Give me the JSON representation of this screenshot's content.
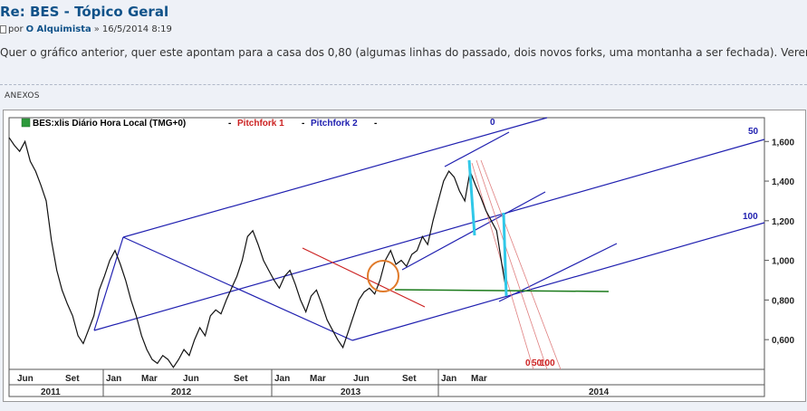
{
  "post": {
    "title": "Re: BES - Tópico Geral",
    "by_label": "por",
    "author": "O Alquimista",
    "separator": "»",
    "date": "16/5/2014 8:19",
    "body": "Quer o gráfico anterior, quer este apontam para a casa dos 0,80 (algumas linhas do passado, dois novos forks, uma montanha a ser fechada). Veremos."
  },
  "attachments": {
    "label": "ANEXOS"
  },
  "chart_data": {
    "type": "line",
    "title": "BES:xlis Diário Hora Local (TMG+0)",
    "legend": [
      {
        "name": "Pitchfork 1",
        "color": "#cc2222"
      },
      {
        "name": "Pitchfork 2",
        "color": "#2020b0"
      }
    ],
    "y_ticks": [
      "1,600",
      "1,400",
      "1,200",
      "1,000",
      "0,800",
      "0,600"
    ],
    "ylim": [
      0.45,
      1.72
    ],
    "x_month_labels": [
      "Jun",
      "Set",
      "Jan",
      "Mar",
      "Jun",
      "Set",
      "Jan",
      "Mar",
      "Jun",
      "Set",
      "Jan",
      "Mar"
    ],
    "x_year_labels": [
      "2011",
      "2012",
      "2013",
      "2014"
    ],
    "fork_level_labels": [
      "0",
      "50",
      "100",
      "0",
      "50",
      "100"
    ],
    "series": [
      {
        "values": [
          1.62,
          1.58,
          1.55,
          1.6,
          1.5,
          1.45,
          1.38,
          1.3,
          1.1,
          0.95,
          0.85,
          0.78,
          0.72,
          0.62,
          0.58,
          0.65,
          0.72,
          0.85,
          0.92,
          1.0,
          1.05,
          0.98,
          0.9,
          0.8,
          0.72,
          0.62,
          0.55,
          0.5,
          0.48,
          0.52,
          0.5,
          0.46,
          0.5,
          0.55,
          0.52,
          0.6,
          0.66,
          0.62,
          0.72,
          0.75,
          0.73,
          0.8,
          0.86,
          0.92,
          1.0,
          1.12,
          1.15,
          1.08,
          1.0,
          0.95,
          0.9,
          0.86,
          0.92,
          0.95,
          0.88,
          0.8,
          0.74,
          0.82,
          0.85,
          0.78,
          0.7,
          0.65,
          0.6,
          0.56,
          0.64,
          0.72,
          0.8,
          0.84,
          0.86,
          0.83,
          0.9,
          1.0,
          1.05,
          0.98,
          1.0,
          0.97,
          1.03,
          1.05,
          1.12,
          1.08,
          1.2,
          1.3,
          1.4,
          1.45,
          1.42,
          1.35,
          1.3,
          1.45,
          1.38,
          1.32,
          1.25,
          1.2,
          1.15,
          0.98,
          0.82
        ]
      }
    ],
    "colors": {
      "price": "#111111",
      "pitchfork1": "#cc2222",
      "pitchfork2": "#2020b0",
      "horizontal_support": "#1a7a1a",
      "highlight_circle": "#e07a2a",
      "target_arrows": "#30c8e8",
      "fan_lines": "#e08080"
    }
  }
}
